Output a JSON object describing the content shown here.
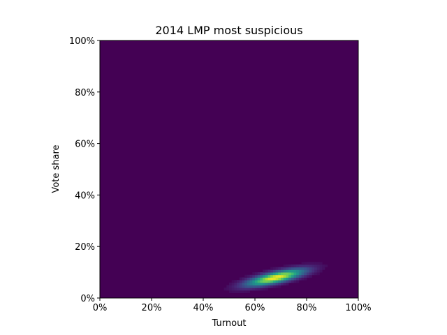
{
  "chart_data": {
    "type": "heatmap",
    "title": "2014 LMP most suspicious",
    "xlabel": "Turnout",
    "ylabel": "Vote share",
    "xlim": [
      0,
      1
    ],
    "ylim": [
      0,
      1
    ],
    "x_ticks": [
      0,
      0.2,
      0.4,
      0.6,
      0.8,
      1.0
    ],
    "y_ticks": [
      0,
      0.2,
      0.4,
      0.6,
      0.8,
      1.0
    ],
    "x_tick_labels": [
      "0%",
      "20%",
      "40%",
      "60%",
      "80%",
      "100%"
    ],
    "y_tick_labels": [
      "0%",
      "20%",
      "40%",
      "60%",
      "80%",
      "100%"
    ],
    "grid": false,
    "colormap": "viridis",
    "background_color": "#440154",
    "density_peak": {
      "turnout": 0.68,
      "vote_share": 0.08
    },
    "density_spread": {
      "turnout": 0.075,
      "vote_share": 0.022
    },
    "turnout_vote_share_correlation": 0.75
  }
}
